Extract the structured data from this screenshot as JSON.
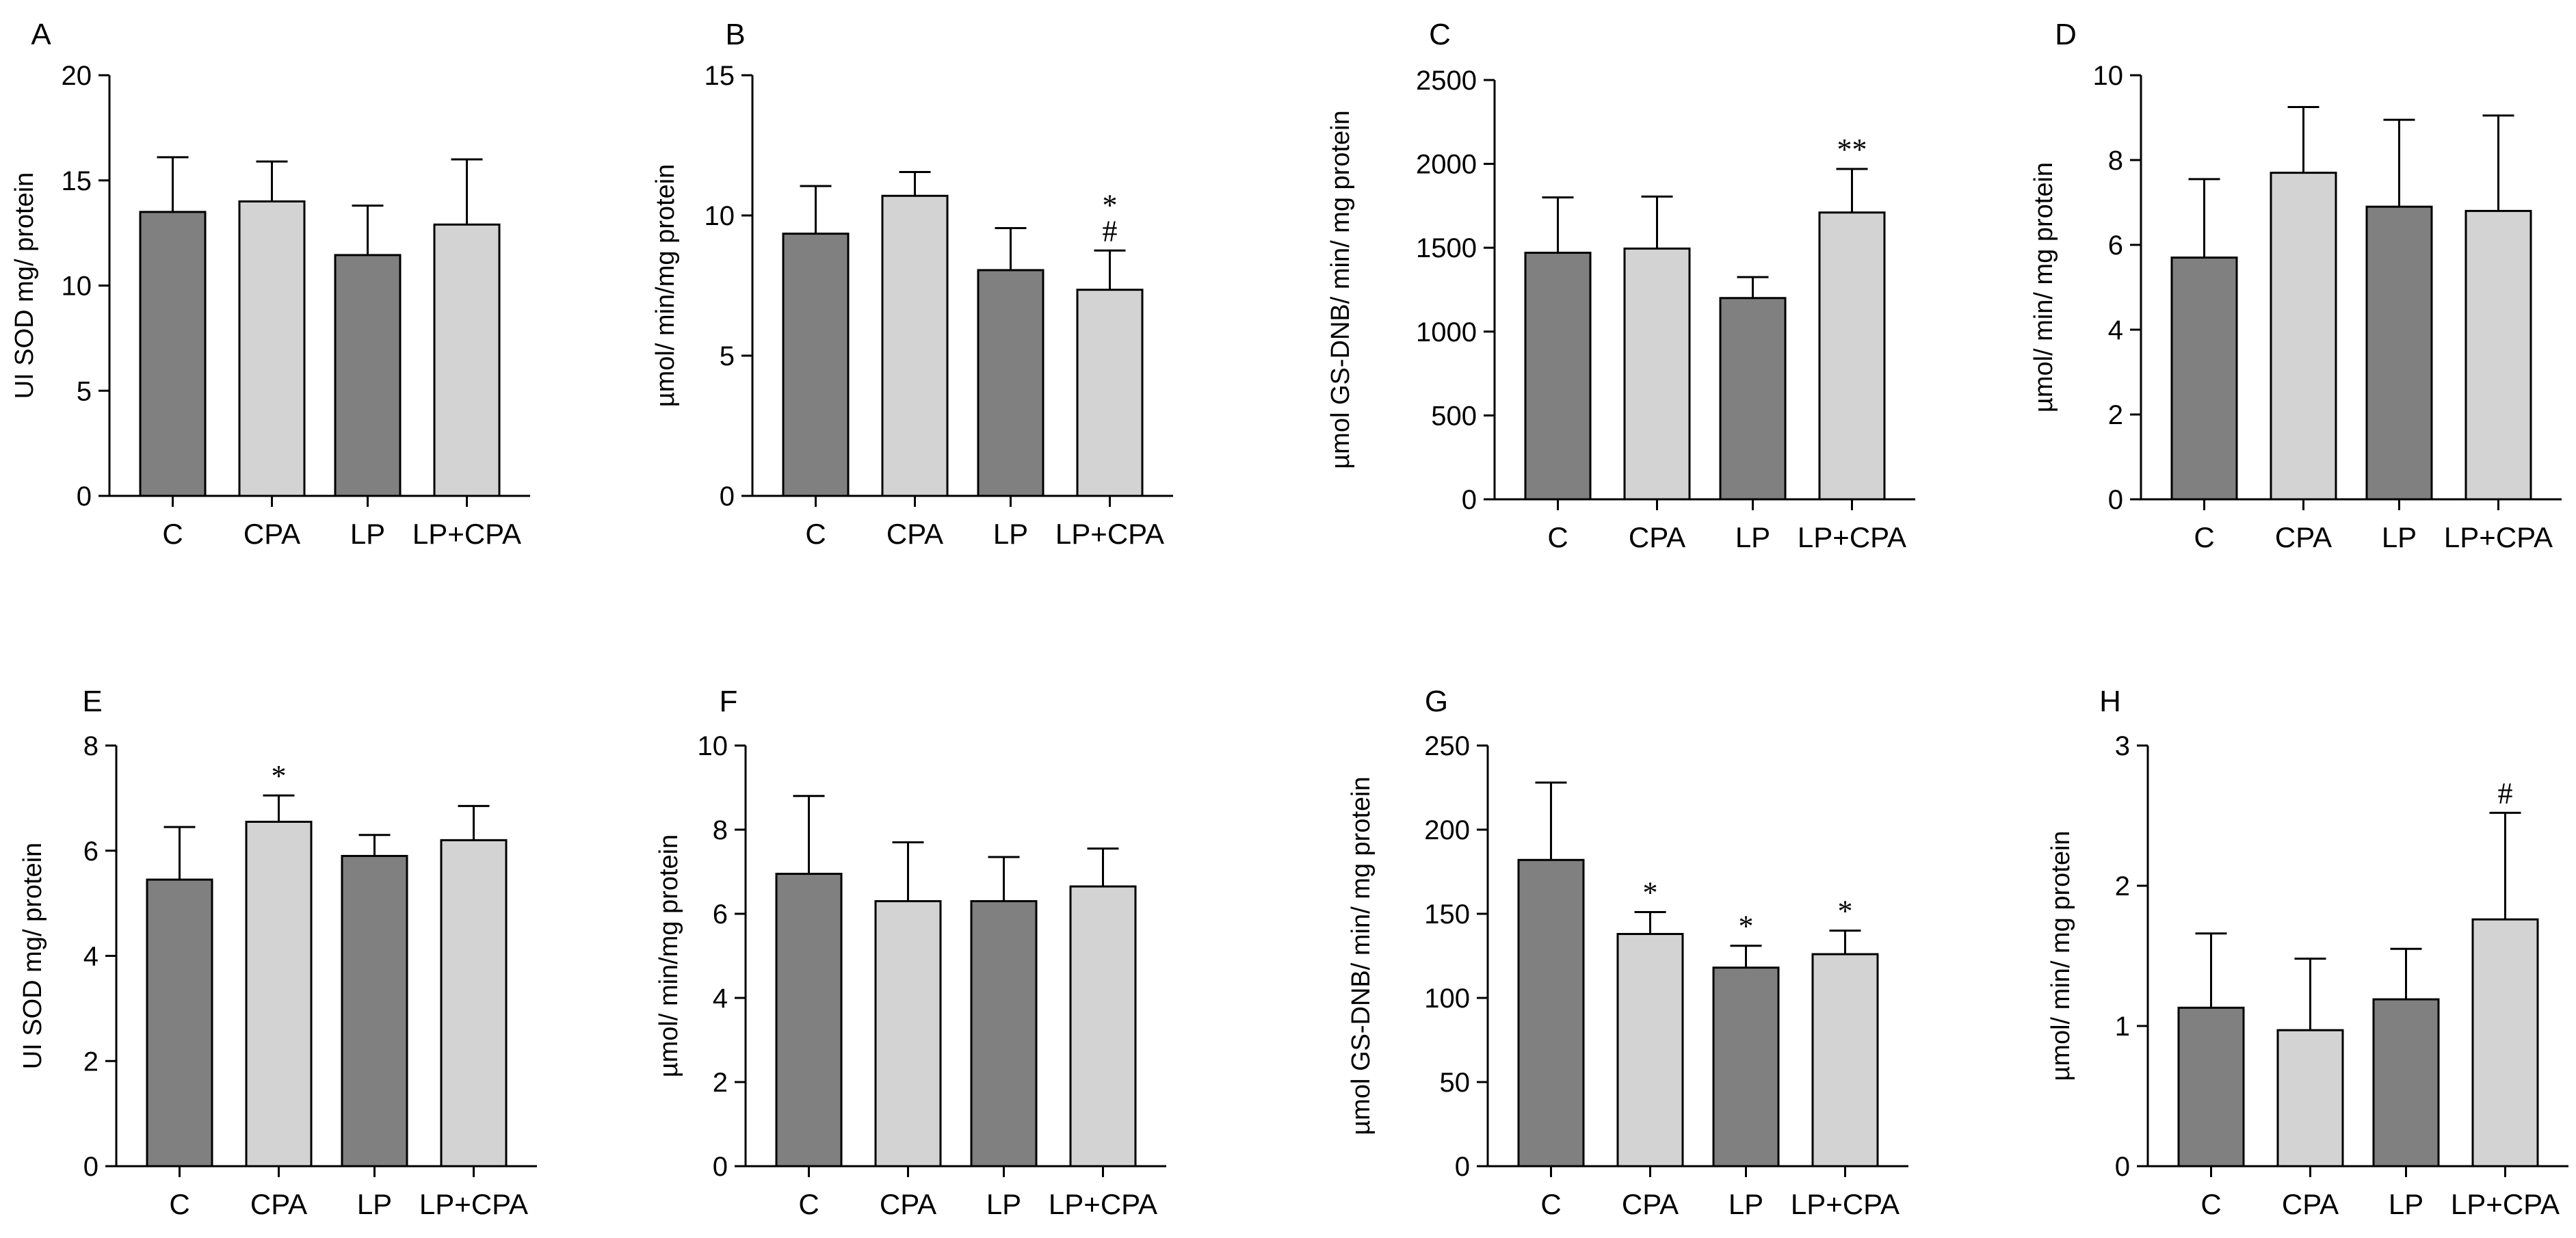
{
  "figure": {
    "colors": {
      "dark": "#808080",
      "light": "#d3d3d3",
      "axis": "#000000",
      "background": "#ffffff"
    }
  },
  "chart_data": [
    {
      "panel": "A",
      "type": "bar",
      "ylabel": "UI SOD mg/ protein",
      "categories": [
        "C",
        "CPA",
        "LP",
        "LP+CPA"
      ],
      "values": [
        13.5,
        14.0,
        11.45,
        12.9
      ],
      "errors": [
        2.6,
        1.9,
        2.35,
        3.1
      ],
      "ylim": [
        0,
        20
      ],
      "yticks": [
        0,
        5,
        10,
        15,
        20
      ],
      "annotations": [
        "",
        "",
        "",
        ""
      ]
    },
    {
      "panel": "B",
      "type": "bar",
      "ylabel": "µmol/ min/mg protein",
      "categories": [
        "C",
        "CPA",
        "LP",
        "LP+CPA"
      ],
      "values": [
        9.35,
        10.7,
        8.05,
        7.35
      ],
      "errors": [
        1.7,
        0.85,
        1.5,
        1.4
      ],
      "ylim": [
        0,
        15
      ],
      "yticks": [
        0,
        5,
        10,
        15
      ],
      "annotations": [
        "",
        "",
        "",
        "*\n#"
      ]
    },
    {
      "panel": "C",
      "type": "bar",
      "ylabel": "µmol GS-DNB/ min/ mg protein",
      "categories": [
        "C",
        "CPA",
        "LP",
        "LP+CPA"
      ],
      "values": [
        1470,
        1495,
        1200,
        1710
      ],
      "errors": [
        330,
        310,
        125,
        260
      ],
      "ylim": [
        0,
        2500
      ],
      "yticks": [
        0,
        500,
        1000,
        1500,
        2000,
        2500
      ],
      "annotations": [
        "",
        "",
        "",
        "**"
      ]
    },
    {
      "panel": "D",
      "type": "bar",
      "ylabel": "µmol/ min/ mg protein",
      "categories": [
        "C",
        "CPA",
        "LP",
        "LP+CPA"
      ],
      "values": [
        5.7,
        7.7,
        6.9,
        6.8
      ],
      "errors": [
        1.85,
        1.55,
        2.05,
        2.25
      ],
      "ylim": [
        0,
        10
      ],
      "yticks": [
        0,
        2,
        4,
        6,
        8,
        10
      ],
      "annotations": [
        "",
        "",
        "",
        ""
      ]
    },
    {
      "panel": "E",
      "type": "bar",
      "ylabel": "UI SOD mg/ protein",
      "categories": [
        "C",
        "CPA",
        "LP",
        "LP+CPA"
      ],
      "values": [
        5.45,
        6.55,
        5.9,
        6.2
      ],
      "errors": [
        1.0,
        0.5,
        0.4,
        0.65
      ],
      "ylim": [
        0,
        8
      ],
      "yticks": [
        0,
        2,
        4,
        6,
        8
      ],
      "annotations": [
        "",
        "*",
        "",
        ""
      ]
    },
    {
      "panel": "F",
      "type": "bar",
      "ylabel": "µmol/ min/mg protein",
      "categories": [
        "C",
        "CPA",
        "LP",
        "LP+CPA"
      ],
      "values": [
        6.95,
        6.3,
        6.3,
        6.65
      ],
      "errors": [
        1.85,
        1.4,
        1.05,
        0.9
      ],
      "ylim": [
        0,
        10
      ],
      "yticks": [
        0,
        2,
        4,
        6,
        8,
        10
      ],
      "annotations": [
        "",
        "",
        "",
        ""
      ]
    },
    {
      "panel": "G",
      "type": "bar",
      "ylabel": "µmol GS-DNB/ min/ mg protein",
      "categories": [
        "C",
        "CPA",
        "LP",
        "LP+CPA"
      ],
      "values": [
        182,
        138,
        118,
        126
      ],
      "errors": [
        46,
        13,
        13,
        14
      ],
      "ylim": [
        0,
        250
      ],
      "yticks": [
        0,
        50,
        100,
        150,
        200,
        250
      ],
      "annotations": [
        "",
        "*",
        "*",
        "*"
      ]
    },
    {
      "panel": "H",
      "type": "bar",
      "ylabel": "µmol/ min/ mg protein",
      "categories": [
        "C",
        "CPA",
        "LP",
        "LP+CPA"
      ],
      "values": [
        1.13,
        0.97,
        1.19,
        1.76
      ],
      "errors": [
        0.53,
        0.51,
        0.36,
        0.76
      ],
      "ylim": [
        0,
        3
      ],
      "yticks": [
        0,
        1,
        2,
        3
      ],
      "annotations": [
        "",
        "",
        "",
        "#"
      ]
    }
  ]
}
